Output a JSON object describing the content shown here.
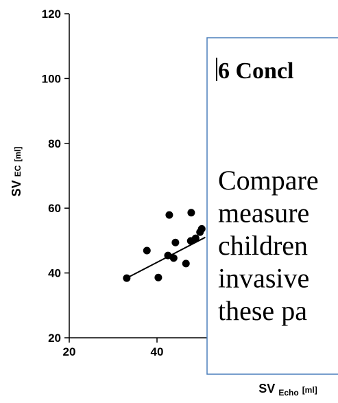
{
  "chart_data": {
    "type": "scatter",
    "x_label": {
      "main": "SV",
      "sub": "Echo",
      "unit": "[ml]"
    },
    "y_label": {
      "main": "SV",
      "sub": "EC",
      "unit": "[ml]"
    },
    "x": [
      33.1,
      37.7,
      40.3,
      42.8,
      42.5,
      43.8,
      44.2,
      46.6,
      47.8,
      47.7,
      48.8,
      49.8,
      50.2
    ],
    "y": [
      38.4,
      46.9,
      38.6,
      57.9,
      45.4,
      44.6,
      49.4,
      42.9,
      58.6,
      49.9,
      50.7,
      52.6,
      53.6
    ],
    "color": "#000000",
    "fit": {
      "x": [
        32.5,
        51
      ],
      "y": [
        38,
        51
      ]
    },
    "xlim": [
      20,
      80
    ],
    "ylim": [
      20,
      120
    ],
    "xticks": [
      20,
      40
    ],
    "yticks": [
      20,
      40,
      60,
      80,
      100,
      120
    ]
  },
  "overlay": {
    "heading": "6 Concl",
    "lines": [
      "Compare",
      "measure",
      "children",
      "invasive",
      "these pa"
    ]
  }
}
